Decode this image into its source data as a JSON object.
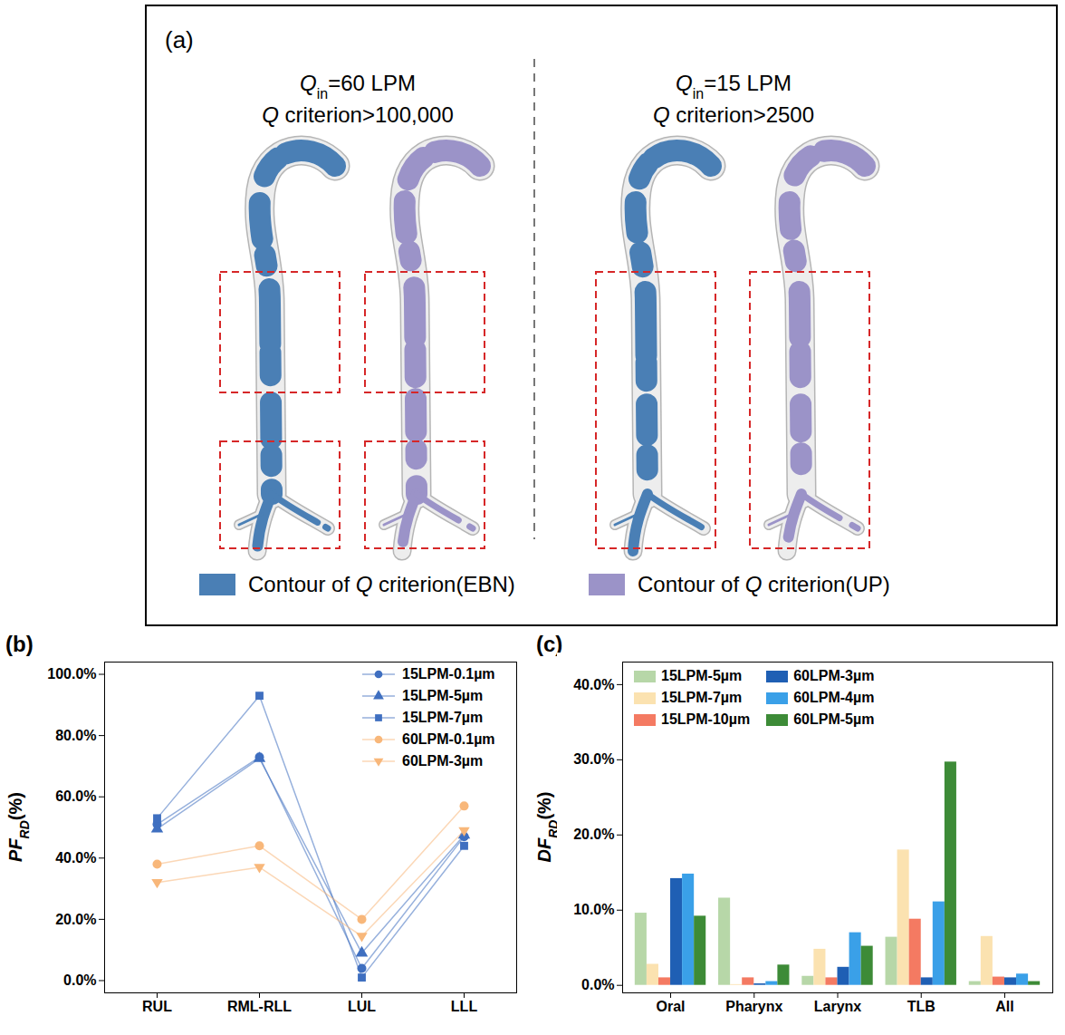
{
  "panel_a": {
    "label": "(a)",
    "conditions": [
      {
        "flow": {
          "symbol": "Q",
          "subscript": "in",
          "rest": "=60 LPM"
        },
        "criterion": {
          "symbol": "Q",
          "rest": " criterion>100,000"
        }
      },
      {
        "flow": {
          "symbol": "Q",
          "subscript": "in",
          "rest": "=15 LPM"
        },
        "criterion": {
          "symbol": "Q",
          "rest": " criterion>2500"
        }
      }
    ],
    "legend": [
      {
        "before": "Contour of ",
        "symbol": "Q",
        "after": " criterion(EBN)",
        "color": "#4a7fb5"
      },
      {
        "before": "Contour of ",
        "symbol": "Q",
        "after": " criterion(UP)",
        "color": "#9b93c8"
      }
    ]
  },
  "chart_data": [
    {
      "panel": "(b)",
      "type": "line",
      "y_label": {
        "symbol": "PF",
        "subscript": "RD",
        "rest": "(%)"
      },
      "categories": [
        "RUL",
        "RML-RLL",
        "LUL",
        "LLL"
      ],
      "series": [
        {
          "name": "15LPM-0.1µm",
          "color": "#3f6fc0",
          "marker": "circle",
          "values": [
            51,
            73,
            4,
            47
          ]
        },
        {
          "name": "15LPM-5µm",
          "color": "#3f6fc0",
          "marker": "triangle",
          "values": [
            49.5,
            72.5,
            9,
            47.5
          ]
        },
        {
          "name": "15LPM-7µm",
          "color": "#3f6fc0",
          "marker": "square",
          "values": [
            53,
            93,
            1,
            44
          ]
        },
        {
          "name": "60LPM-0.1µm",
          "color": "#f8b77a",
          "marker": "circle",
          "values": [
            38,
            44,
            20,
            57
          ]
        },
        {
          "name": "60LPM-3µm",
          "color": "#f8b77a",
          "marker": "triangle-down",
          "values": [
            32,
            37,
            14.5,
            49
          ]
        }
      ],
      "ylim": [
        -4,
        104
      ],
      "yticks": [
        {
          "value": 0,
          "label": "0.0%"
        },
        {
          "value": 20,
          "label": "20.0%"
        },
        {
          "value": 40,
          "label": "40.0%"
        },
        {
          "value": 60,
          "label": "60.0%"
        },
        {
          "value": 80,
          "label": "80.0%"
        },
        {
          "value": 100,
          "label": "100.0%"
        }
      ],
      "legend": "top-right"
    },
    {
      "panel": "(c)",
      "type": "bar",
      "y_label": {
        "symbol": "DF",
        "subscript": "RD",
        "rest": "(%)"
      },
      "categories": [
        "Oral",
        "Pharynx",
        "Larynx",
        "TLB",
        "All"
      ],
      "series": [
        {
          "name": "15LPM-5µm",
          "color": "#b7d7a8",
          "values": [
            9.6,
            11.6,
            1.2,
            6.4,
            0.5
          ]
        },
        {
          "name": "15LPM-7µm",
          "color": "#fbe2b0",
          "values": [
            2.8,
            0.1,
            4.8,
            18.0,
            6.5
          ]
        },
        {
          "name": "15LPM-10µm",
          "color": "#f47a62",
          "values": [
            1.0,
            1.0,
            1.0,
            8.8,
            1.1
          ]
        },
        {
          "name": "60LPM-3µm",
          "color": "#1f5fb4",
          "values": [
            14.2,
            0.2,
            2.4,
            1.0,
            1.0
          ]
        },
        {
          "name": "60LPM-4µm",
          "color": "#3aa0e8",
          "values": [
            14.8,
            0.5,
            7.0,
            11.1,
            1.5
          ]
        },
        {
          "name": "60LPM-5µm",
          "color": "#3d8b37",
          "values": [
            9.2,
            2.7,
            5.2,
            29.7,
            0.5
          ]
        }
      ],
      "ylim": [
        -1,
        43
      ],
      "yticks": [
        {
          "value": 0,
          "label": "0.0%"
        },
        {
          "value": 10,
          "label": "10.0%"
        },
        {
          "value": 20,
          "label": "20.0%"
        },
        {
          "value": 30,
          "label": "30.0%"
        },
        {
          "value": 40,
          "label": "40.0%"
        }
      ],
      "legend": "top-left"
    }
  ]
}
